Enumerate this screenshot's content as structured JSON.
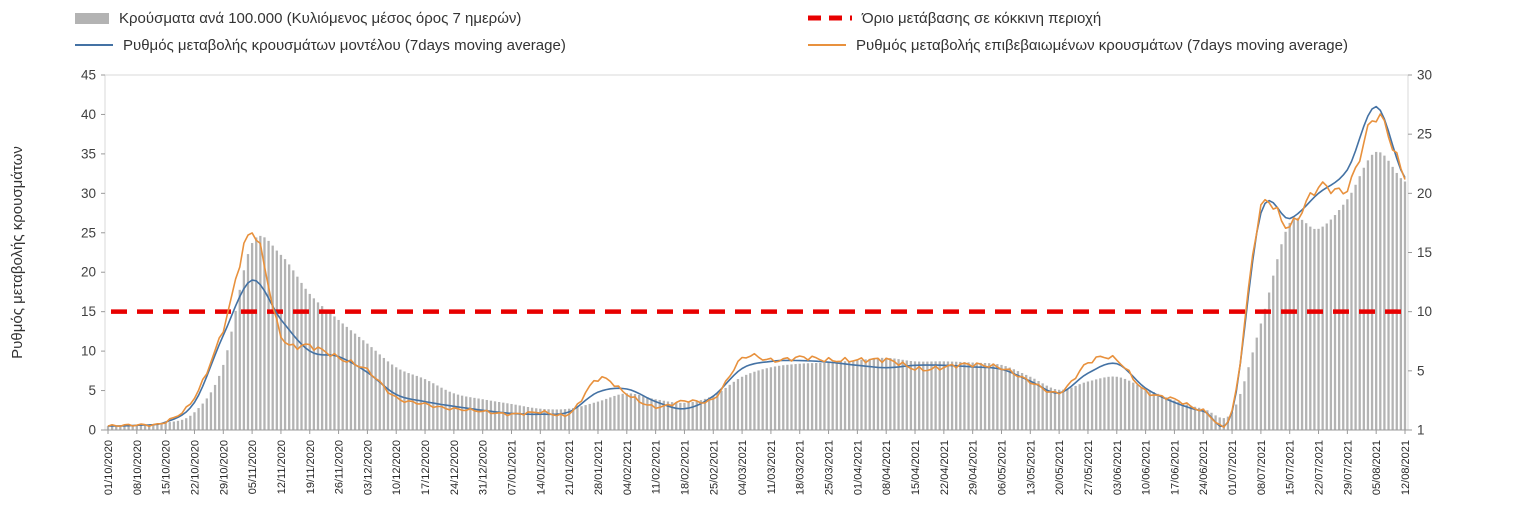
{
  "legend": {
    "bars": "Κρούσματα ανά 100.000 (Κυλιόμενος μέσος όρος 7 ημερών)",
    "threshold": "Όριο μετάβασης σε κόκκινη περιοχή",
    "model": "Ρυθμός μεταβολής κρουσμάτων μοντέλου (7days moving average)",
    "confirmed": "Ρυθμός μεταβολής επιβεβαιωμένων κρουσμάτων (7days moving average)"
  },
  "colors": {
    "bars": "#b3b3b3",
    "model": "#4472a4",
    "confirmed": "#e8913d",
    "threshold": "#e80000",
    "text": "#333333",
    "axis_text": "#404040",
    "grid": "#d9d9d9",
    "axis_line": "#9a9a9a"
  },
  "chart_data": {
    "type": "combo",
    "sampling": "weekly keypoints read from the figure; daily bars/lines are smooth interpolation of these values",
    "title": "",
    "y_axis_title": "Ρυθμός μεταβολής κρουσμάτων",
    "left_axis": {
      "min": 0,
      "max": 45,
      "ticks": [
        0,
        5,
        10,
        15,
        20,
        25,
        30,
        35,
        40,
        45
      ]
    },
    "right_axis": {
      "min": 0,
      "max": 30,
      "tick_positions": [
        0,
        5,
        10,
        15,
        20,
        25,
        30
      ],
      "tick_labels": [
        "1",
        "5",
        "10",
        "15",
        "20",
        "25",
        "30"
      ]
    },
    "threshold_left_value": 15,
    "categories": [
      "01/10/2020",
      "08/10/2020",
      "15/10/2020",
      "22/10/2020",
      "29/10/2020",
      "05/11/2020",
      "12/11/2020",
      "19/11/2020",
      "26/11/2020",
      "03/12/2020",
      "10/12/2020",
      "17/12/2020",
      "24/12/2020",
      "31/12/2020",
      "07/01/2021",
      "14/01/2021",
      "21/01/2021",
      "28/01/2021",
      "04/02/2021",
      "11/02/2021",
      "18/02/2021",
      "25/02/2021",
      "04/03/2021",
      "11/03/2021",
      "18/03/2021",
      "25/03/2021",
      "01/04/2021",
      "08/04/2021",
      "15/04/2021",
      "22/04/2021",
      "29/04/2021",
      "06/05/2021",
      "13/05/2021",
      "20/05/2021",
      "27/05/2021",
      "03/06/2021",
      "10/06/2021",
      "17/06/2021",
      "24/06/2021",
      "01/07/2021",
      "08/07/2021",
      "15/07/2021",
      "22/07/2021",
      "29/07/2021",
      "05/08/2021",
      "12/08/2021"
    ],
    "series": [
      {
        "name": "Κρούσματα ανά 100.000 (Κυλιόμενος μέσος όρος 7 ημερών)",
        "type": "bar",
        "axis": "right",
        "values": [
          0.35,
          0.4,
          0.6,
          1.5,
          5.5,
          15.8,
          14.8,
          11.5,
          9.3,
          7.3,
          5.3,
          4.3,
          3.1,
          2.6,
          2.2,
          1.8,
          1.8,
          2.4,
          3.1,
          2.6,
          2.3,
          2.9,
          4.5,
          5.3,
          5.6,
          5.7,
          5.9,
          6.1,
          5.8,
          5.8,
          5.7,
          5.5,
          4.5,
          3.4,
          4.1,
          4.5,
          3.5,
          2.5,
          1.8,
          1.5,
          9.0,
          17.5,
          17.0,
          19.5,
          23.5,
          21.0
        ]
      },
      {
        "name": "Ρυθμός μεταβολής κρουσμάτων μοντέλου (7days moving average)",
        "type": "line",
        "axis": "left",
        "values": [
          0.5,
          0.6,
          1.0,
          3.5,
          12.0,
          19.0,
          14.0,
          10.0,
          9.3,
          7.3,
          4.5,
          3.6,
          3.0,
          2.5,
          2.1,
          2.0,
          2.3,
          4.8,
          5.2,
          3.6,
          2.7,
          4.3,
          7.8,
          8.7,
          8.8,
          8.6,
          8.2,
          7.9,
          8.2,
          8.2,
          8.0,
          7.7,
          6.2,
          4.7,
          7.2,
          8.4,
          5.3,
          3.5,
          2.4,
          2.3,
          27.5,
          26.8,
          30.0,
          33.0,
          41.0,
          32.0
        ]
      },
      {
        "name": "Ρυθμός μεταβολής επιβεβαιωμένων κρουσμάτων (7days moving average)",
        "type": "line",
        "axis": "left",
        "values": [
          0.5,
          0.6,
          1.1,
          4.0,
          13.0,
          25.0,
          12.0,
          10.8,
          9.0,
          7.7,
          4.0,
          3.3,
          2.7,
          2.3,
          2.1,
          2.2,
          2.1,
          6.5,
          4.5,
          3.0,
          3.6,
          4.0,
          9.0,
          8.8,
          9.3,
          8.7,
          9.0,
          8.8,
          7.8,
          8.0,
          8.2,
          8.0,
          6.0,
          4.8,
          8.5,
          8.8,
          5.0,
          3.8,
          2.5,
          2.4,
          28.0,
          26.0,
          30.5,
          31.0,
          39.5,
          32.3
        ]
      },
      {
        "name": "Όριο μετάβασης σε κόκκινη περιοχή",
        "type": "threshold-line",
        "axis": "left",
        "value": 15
      }
    ]
  }
}
